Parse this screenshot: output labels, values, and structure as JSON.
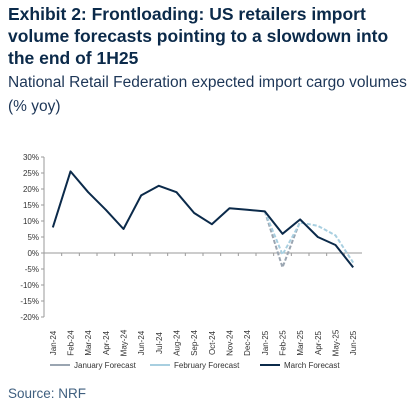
{
  "header": {
    "title": "Exhibit 2: Frontloading: US retailers import volume forecasts pointing to a slowdown into the end of 1H25",
    "subtitle": "National Retail Federation expected import cargo volumes (% yoy)"
  },
  "footer": {
    "source": "Source: NRF"
  },
  "chart_data": {
    "type": "line",
    "title": "",
    "xlabel": "",
    "ylabel": "",
    "ylim": [
      -20,
      30
    ],
    "yticks": [
      "30%",
      "25%",
      "20%",
      "15%",
      "10%",
      "5%",
      "0%",
      "-5%",
      "-10%",
      "-15%",
      "-20%"
    ],
    "categories": [
      "Jan-24",
      "Feb-24",
      "Mar-24",
      "Apr-24",
      "May-24",
      "Jun-24",
      "Jul-24",
      "Aug-24",
      "Sep-24",
      "Oct-24",
      "Nov-24",
      "Dec-24",
      "Jan-25",
      "Feb-25",
      "Mar-25",
      "Apr-25",
      "May-25",
      "Jun-25"
    ],
    "grid": false,
    "legend_position": "bottom",
    "series": [
      {
        "name": "January Forecast",
        "color": "#9aa5b1",
        "dash": true,
        "values": [
          null,
          null,
          null,
          null,
          null,
          null,
          null,
          null,
          null,
          null,
          null,
          null,
          13.0,
          -4.5,
          10.0,
          null,
          null,
          null
        ]
      },
      {
        "name": "February Forecast",
        "color": "#a8cfe0",
        "dash": true,
        "values": [
          null,
          null,
          null,
          null,
          null,
          null,
          null,
          null,
          null,
          null,
          null,
          null,
          13.0,
          -0.5,
          9.5,
          8.5,
          5.5,
          -3.0
        ]
      },
      {
        "name": "March Forecast",
        "color": "#0b2a4a",
        "dash": false,
        "values": [
          8.0,
          25.5,
          19.0,
          13.5,
          7.5,
          18.0,
          21.0,
          19.0,
          12.5,
          9.0,
          14.0,
          13.5,
          13.0,
          6.0,
          10.5,
          5.0,
          2.5,
          -4.5
        ]
      }
    ]
  }
}
